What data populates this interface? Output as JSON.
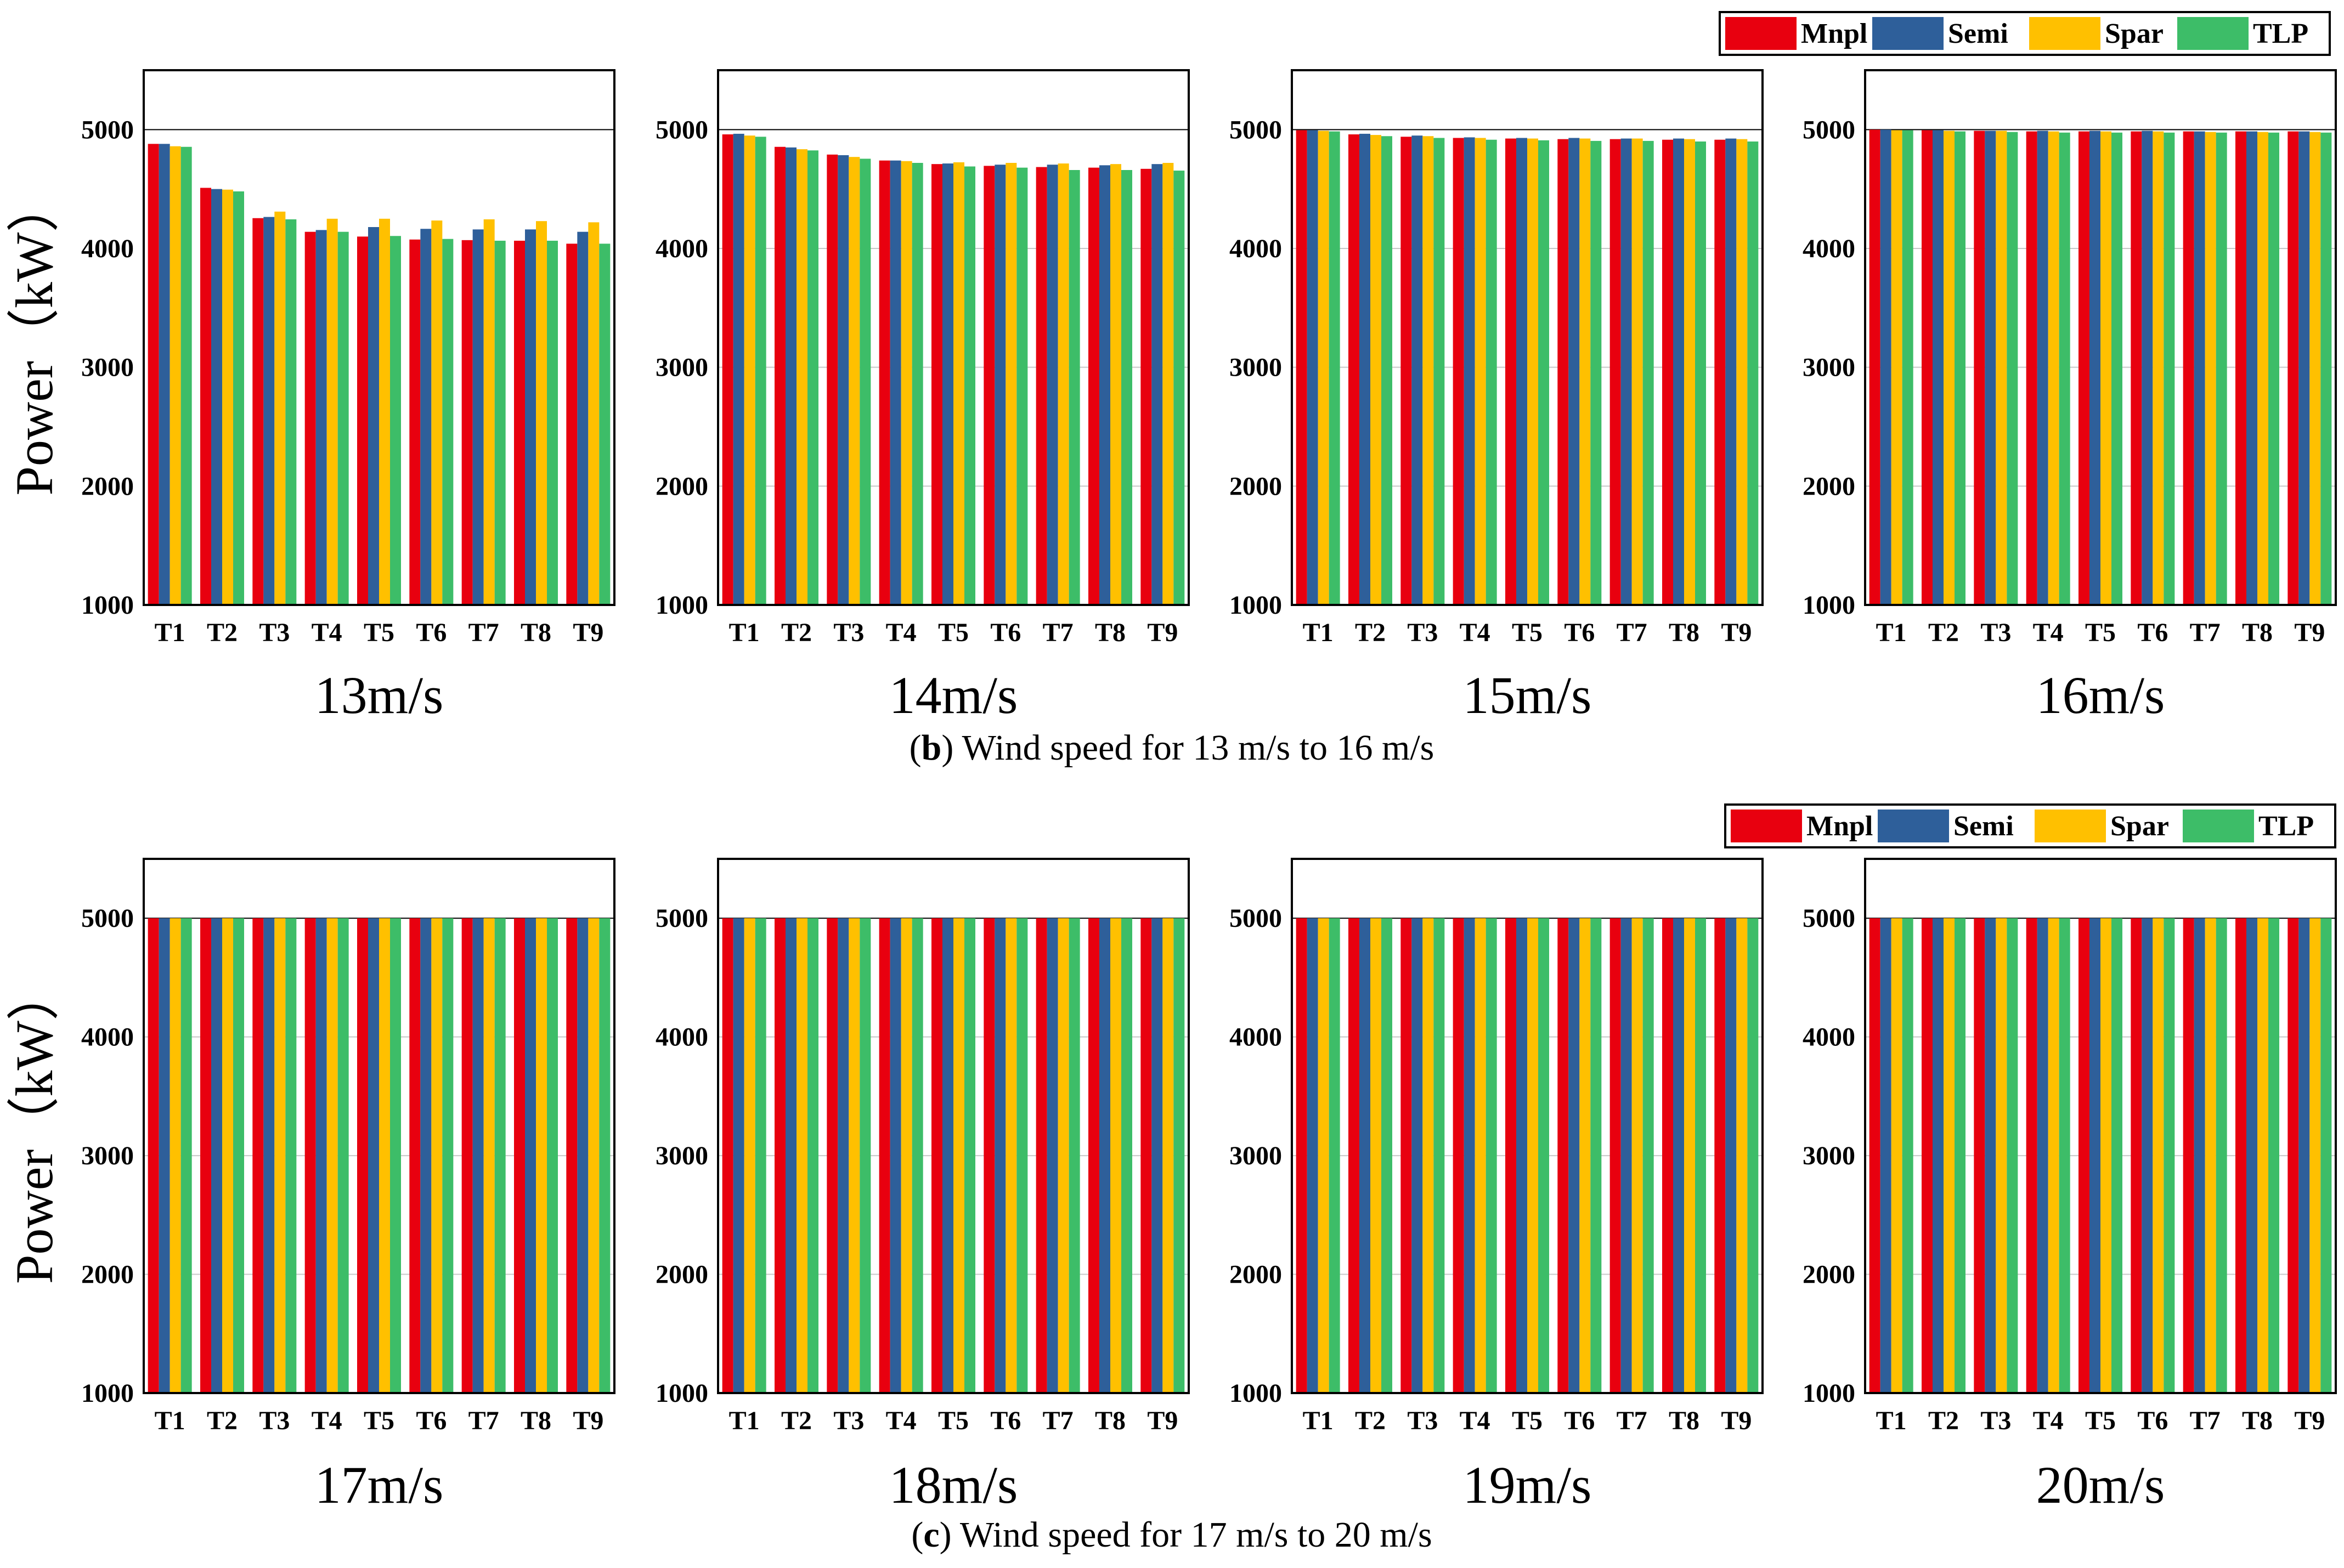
{
  "series_colors": {
    "Mnpl": "#e8000f",
    "Semi": "#2e5f9a",
    "Spar": "#ffc000",
    "TLP": "#3dbd68"
  },
  "chart_data": {
    "type": "bar",
    "ylabel": "Power（kW）",
    "ylim": [
      1000,
      5500
    ],
    "yticks": [
      1000,
      2000,
      3000,
      4000,
      5000
    ],
    "categories": [
      "T1",
      "T2",
      "T3",
      "T4",
      "T5",
      "T6",
      "T7",
      "T8",
      "T9"
    ],
    "legend": [
      "Mnpl",
      "Semi",
      "Spar",
      "TLP"
    ],
    "rows": [
      {
        "caption_label": "b",
        "caption_text": "Wind speed for 13 m/s to 16 m/s",
        "panels": [
          {
            "title": "13m/s",
            "series": [
              {
                "name": "Mnpl",
                "values": [
                  4880,
                  4510,
                  4255,
                  4140,
                  4100,
                  4075,
                  4070,
                  4065,
                  4040
                ]
              },
              {
                "name": "Semi",
                "values": [
                  4880,
                  4500,
                  4265,
                  4155,
                  4180,
                  4165,
                  4160,
                  4160,
                  4140
                ]
              },
              {
                "name": "Spar",
                "values": [
                  4860,
                  4495,
                  4310,
                  4250,
                  4250,
                  4235,
                  4245,
                  4230,
                  4220
                ]
              },
              {
                "name": "TLP",
                "values": [
                  4855,
                  4480,
                  4245,
                  4140,
                  4105,
                  4080,
                  4065,
                  4065,
                  4040
                ]
              }
            ]
          },
          {
            "title": "14m/s",
            "series": [
              {
                "name": "Mnpl",
                "values": [
                  4960,
                  4855,
                  4790,
                  4740,
                  4710,
                  4695,
                  4685,
                  4680,
                  4670
                ]
              },
              {
                "name": "Semi",
                "values": [
                  4965,
                  4850,
                  4785,
                  4740,
                  4715,
                  4705,
                  4705,
                  4700,
                  4710
                ]
              },
              {
                "name": "Spar",
                "values": [
                  4950,
                  4835,
                  4770,
                  4735,
                  4725,
                  4720,
                  4715,
                  4710,
                  4720
                ]
              },
              {
                "name": "TLP",
                "values": [
                  4940,
                  4825,
                  4755,
                  4720,
                  4690,
                  4680,
                  4660,
                  4660,
                  4655
                ]
              }
            ]
          },
          {
            "title": "15m/s",
            "series": [
              {
                "name": "Mnpl",
                "values": [
                  4995,
                  4960,
                  4940,
                  4930,
                  4925,
                  4920,
                  4920,
                  4915,
                  4915
                ]
              },
              {
                "name": "Semi",
                "values": [
                  4995,
                  4965,
                  4950,
                  4935,
                  4930,
                  4930,
                  4925,
                  4925,
                  4925
                ]
              },
              {
                "name": "Spar",
                "values": [
                  4990,
                  4955,
                  4945,
                  4930,
                  4925,
                  4925,
                  4925,
                  4920,
                  4920
                ]
              },
              {
                "name": "TLP",
                "values": [
                  4985,
                  4945,
                  4930,
                  4915,
                  4910,
                  4905,
                  4905,
                  4900,
                  4900
                ]
              }
            ]
          },
          {
            "title": "16m/s",
            "series": [
              {
                "name": "Mnpl",
                "values": [
                  5000,
                  4995,
                  4990,
                  4985,
                  4985,
                  4985,
                  4985,
                  4985,
                  4985
                ]
              },
              {
                "name": "Semi",
                "values": [
                  5000,
                  4995,
                  4990,
                  4990,
                  4990,
                  4990,
                  4985,
                  4985,
                  4985
                ]
              },
              {
                "name": "Spar",
                "values": [
                  4995,
                  4990,
                  4990,
                  4985,
                  4985,
                  4985,
                  4980,
                  4980,
                  4980
                ]
              },
              {
                "name": "TLP",
                "values": [
                  4995,
                  4985,
                  4980,
                  4975,
                  4975,
                  4975,
                  4975,
                  4975,
                  4975
                ]
              }
            ]
          }
        ]
      },
      {
        "caption_label": "c",
        "caption_text": "Wind speed for 17 m/s to 20 m/s",
        "panels": [
          {
            "title": "17m/s",
            "series": [
              {
                "name": "Mnpl",
                "values": [
                  5000,
                  5000,
                  5000,
                  5000,
                  5000,
                  5000,
                  5000,
                  5000,
                  5000
                ]
              },
              {
                "name": "Semi",
                "values": [
                  5000,
                  5000,
                  5000,
                  5000,
                  5000,
                  5000,
                  5000,
                  5000,
                  5000
                ]
              },
              {
                "name": "Spar",
                "values": [
                  5000,
                  5000,
                  5000,
                  5000,
                  5000,
                  5000,
                  5000,
                  5000,
                  5000
                ]
              },
              {
                "name": "TLP",
                "values": [
                  5000,
                  5000,
                  5000,
                  5000,
                  5000,
                  5000,
                  5000,
                  5000,
                  5000
                ]
              }
            ]
          },
          {
            "title": "18m/s",
            "series": [
              {
                "name": "Mnpl",
                "values": [
                  5000,
                  5000,
                  5000,
                  5000,
                  5000,
                  5000,
                  5000,
                  5000,
                  5000
                ]
              },
              {
                "name": "Semi",
                "values": [
                  5000,
                  5000,
                  5000,
                  5000,
                  5000,
                  5000,
                  5000,
                  5000,
                  5000
                ]
              },
              {
                "name": "Spar",
                "values": [
                  5000,
                  5000,
                  5000,
                  5000,
                  5000,
                  5000,
                  5000,
                  5000,
                  5000
                ]
              },
              {
                "name": "TLP",
                "values": [
                  5000,
                  5000,
                  5000,
                  5000,
                  5000,
                  5000,
                  5000,
                  5000,
                  5000
                ]
              }
            ]
          },
          {
            "title": "19m/s",
            "series": [
              {
                "name": "Mnpl",
                "values": [
                  5000,
                  5000,
                  5000,
                  5000,
                  5000,
                  5000,
                  5000,
                  5000,
                  5000
                ]
              },
              {
                "name": "Semi",
                "values": [
                  5000,
                  5000,
                  5000,
                  5000,
                  5000,
                  5000,
                  5000,
                  5000,
                  5000
                ]
              },
              {
                "name": "Spar",
                "values": [
                  5000,
                  5000,
                  5000,
                  5000,
                  5000,
                  5000,
                  5000,
                  5000,
                  5000
                ]
              },
              {
                "name": "TLP",
                "values": [
                  5000,
                  5000,
                  5000,
                  5000,
                  5000,
                  5000,
                  5000,
                  5000,
                  5000
                ]
              }
            ]
          },
          {
            "title": "20m/s",
            "series": [
              {
                "name": "Mnpl",
                "values": [
                  5000,
                  5000,
                  5000,
                  5000,
                  5000,
                  5000,
                  5000,
                  5000,
                  5000
                ]
              },
              {
                "name": "Semi",
                "values": [
                  5000,
                  5000,
                  5000,
                  5000,
                  5000,
                  5000,
                  5000,
                  5000,
                  5000
                ]
              },
              {
                "name": "Spar",
                "values": [
                  5000,
                  5000,
                  5000,
                  5000,
                  5000,
                  5000,
                  5000,
                  5000,
                  5000
                ]
              },
              {
                "name": "TLP",
                "values": [
                  5000,
                  5000,
                  5000,
                  5000,
                  5000,
                  5000,
                  5000,
                  5000,
                  5000
                ]
              }
            ]
          }
        ]
      }
    ]
  }
}
